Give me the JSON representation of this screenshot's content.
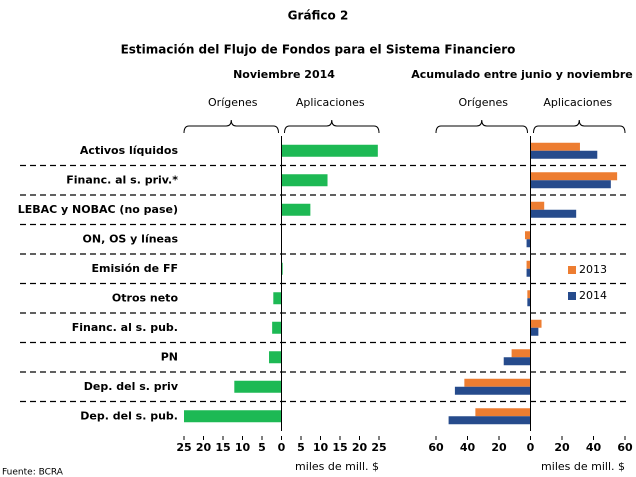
{
  "title": "Gráfico 2",
  "subtitle": "Estimación del Flujo de Fondos para el Sistema Financiero",
  "source": "Fuente: BCRA",
  "chart_data": [
    {
      "type": "bar",
      "orientation": "horizontal",
      "title": "Noviembre 2014",
      "annotations": [
        "Orígenes",
        "Aplicaciones"
      ],
      "categories": [
        "Activos líquidos",
        "Financ. al s. priv.*",
        "LEBAC y NOBAC (no pase)",
        "ON, OS y líneas",
        "Emisión de FF",
        "Otros neto",
        "Financ. al s. pub.",
        "PN",
        "Dep. del s. priv",
        "Dep. del s. pub."
      ],
      "values": [
        24.7,
        11.8,
        7.4,
        0,
        0.3,
        -2.1,
        -2.4,
        -3.2,
        -12.1,
        -25
      ],
      "color": "#1db954",
      "xlim": [
        -25,
        25
      ],
      "xticks": [
        {
          "value": -25,
          "label": "25"
        },
        {
          "value": -20,
          "label": "20"
        },
        {
          "value": -15,
          "label": "15"
        },
        {
          "value": -10,
          "label": "10"
        },
        {
          "value": -5,
          "label": "5"
        },
        0,
        5,
        10,
        15,
        20,
        25
      ],
      "xlabel": "miles de mill. $"
    },
    {
      "type": "bar",
      "orientation": "horizontal",
      "title": "Acumulado entre junio y noviembre",
      "annotations": [
        "Orígenes",
        "Aplicaciones"
      ],
      "series": [
        {
          "name": "2013",
          "color": "#ed7d31",
          "values": [
            31.4,
            55,
            8.7,
            -3.5,
            -2.5,
            -2,
            7,
            -12,
            -42,
            -35
          ]
        },
        {
          "name": "2014",
          "color": "#264b8c",
          "values": [
            42.4,
            51,
            29,
            -2.5,
            -2.5,
            -2,
            5,
            -17,
            -48,
            -52
          ]
        }
      ],
      "xlim": [
        -60,
        60
      ],
      "xticks": [
        {
          "value": -60,
          "label": "60"
        },
        {
          "value": -40,
          "label": "40"
        },
        {
          "value": -20,
          "label": "20"
        },
        0,
        20,
        40,
        60
      ],
      "xlabel": "miles de mill. $",
      "legend": "right"
    }
  ]
}
